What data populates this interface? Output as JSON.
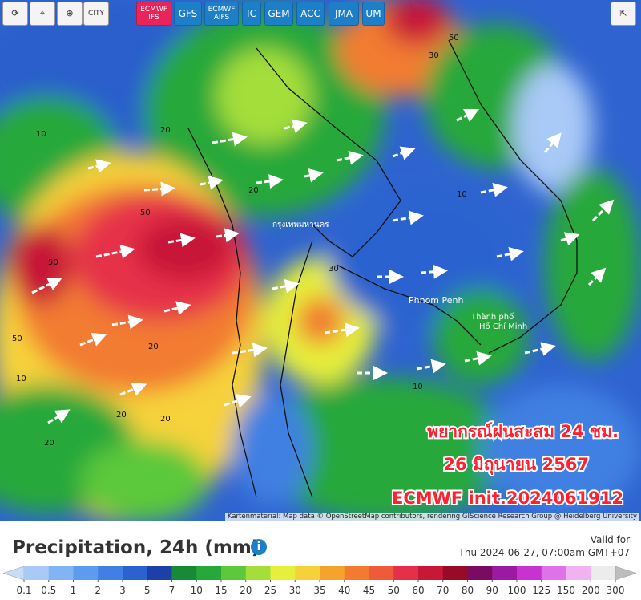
{
  "toolbar": {
    "city_button": "CITY"
  },
  "models": [
    {
      "label": "ECMWF IFS",
      "active": true
    },
    {
      "label": "GFS",
      "active": false
    },
    {
      "label": "ECMWF AIFS",
      "active": false
    },
    {
      "label": "IC",
      "active": false
    },
    {
      "label": "GEM",
      "active": false
    },
    {
      "label": "ACC",
      "active": false
    },
    {
      "label": "JMA",
      "active": false
    },
    {
      "label": "UM",
      "active": false
    }
  ],
  "map": {
    "place_labels": [
      "กรุงเทพมหานคร",
      "Phnom Penh",
      "Thành phố",
      "Hồ Chí Minh"
    ],
    "contour_labels": [
      "50",
      "30",
      "20",
      "10",
      "20",
      "50",
      "50",
      "20",
      "10",
      "30",
      "10",
      "20",
      "20",
      "10",
      "50",
      "20"
    ],
    "overlay": [
      "พยากรณ์ฝนสะสม 24 ชม.",
      "26 มิถุนายน 2567",
      "ECMWF init.2024061912"
    ],
    "attribution": "Kartenmaterial: Map data © OpenStreetMap contributors, rendering GIScience Research Group @ Heidelberg University"
  },
  "footer": {
    "title": "Precipitation, 24h (mm)",
    "valid_label": "Valid for",
    "valid_time": "Thu 2024-06-27, 07:00am GMT+07"
  },
  "legend": {
    "ticks": [
      "0.1",
      "0.5",
      "1",
      "2",
      "3",
      "5",
      "7",
      "10",
      "15",
      "20",
      "25",
      "30",
      "35",
      "40",
      "45",
      "50",
      "60",
      "70",
      "80",
      "90",
      "100",
      "125",
      "150",
      "200",
      "300"
    ],
    "colors": [
      "#c9dcf5",
      "#a9c9f7",
      "#82b3f4",
      "#5d9bee",
      "#3f80e2",
      "#2a63cf",
      "#1b41a8",
      "#168a36",
      "#27a83a",
      "#5cc83a",
      "#a4de3a",
      "#e6ef3a",
      "#f6d23a",
      "#f5a32c",
      "#f27b30",
      "#ef5a3a",
      "#e6304a",
      "#c71838",
      "#980a28",
      "#7a0a62",
      "#9c1aa2",
      "#c832d0",
      "#df72e8",
      "#f0b2f0",
      "#ececec",
      "#bdbdbd"
    ]
  }
}
